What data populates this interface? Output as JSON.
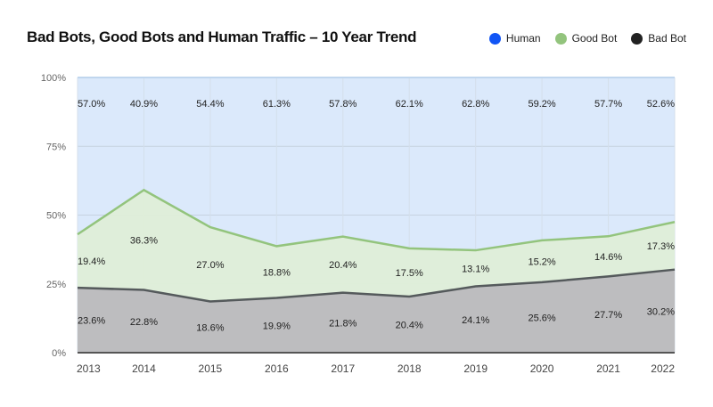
{
  "chart_data": {
    "type": "area",
    "stacked": true,
    "title": "Bad Bots, Good Bots and Human Traffic – 10 Year Trend",
    "categories": [
      "2013",
      "2014",
      "2015",
      "2016",
      "2017",
      "2018",
      "2019",
      "2020",
      "2021",
      "2022"
    ],
    "series": [
      {
        "name": "Bad Bot",
        "color": "#222222",
        "fill": "#bdbdbf",
        "line": "#555a5c",
        "values": [
          23.6,
          22.8,
          18.6,
          19.9,
          21.8,
          20.4,
          24.1,
          25.6,
          27.7,
          30.2
        ],
        "labels": [
          "23.6%",
          "22.8%",
          "18.6%",
          "19.9%",
          "21.8%",
          "20.4%",
          "24.1%",
          "25.6%",
          "27.7%",
          "30.2%"
        ]
      },
      {
        "name": "Good Bot",
        "color": "#93c47d",
        "fill": "#dfeed8",
        "line": "#93c47d",
        "values": [
          19.4,
          36.3,
          27.0,
          18.8,
          20.4,
          17.5,
          13.1,
          15.2,
          14.6,
          17.3
        ],
        "labels": [
          "19.4%",
          "36.3%",
          "27.0%",
          "18.8%",
          "20.4%",
          "17.5%",
          "13.1%",
          "15.2%",
          "14.6%",
          "17.3%"
        ]
      },
      {
        "name": "Human",
        "color": "#1155f5",
        "fill": "#dbe9fb",
        "values": [
          57.0,
          40.9,
          54.4,
          61.3,
          57.8,
          62.1,
          62.8,
          59.2,
          57.7,
          52.6
        ],
        "labels": [
          "57.0%",
          "40.9%",
          "54.4%",
          "61.3%",
          "57.8%",
          "62.1%",
          "62.8%",
          "59.2%",
          "57.7%",
          "52.6%"
        ]
      }
    ],
    "ylim": [
      0,
      100
    ],
    "yticks": [
      "0%",
      "25%",
      "50%",
      "75%",
      "100%"
    ],
    "ytick_values": [
      0,
      25,
      50,
      75,
      100
    ],
    "grid": true,
    "legend": "top-right"
  }
}
